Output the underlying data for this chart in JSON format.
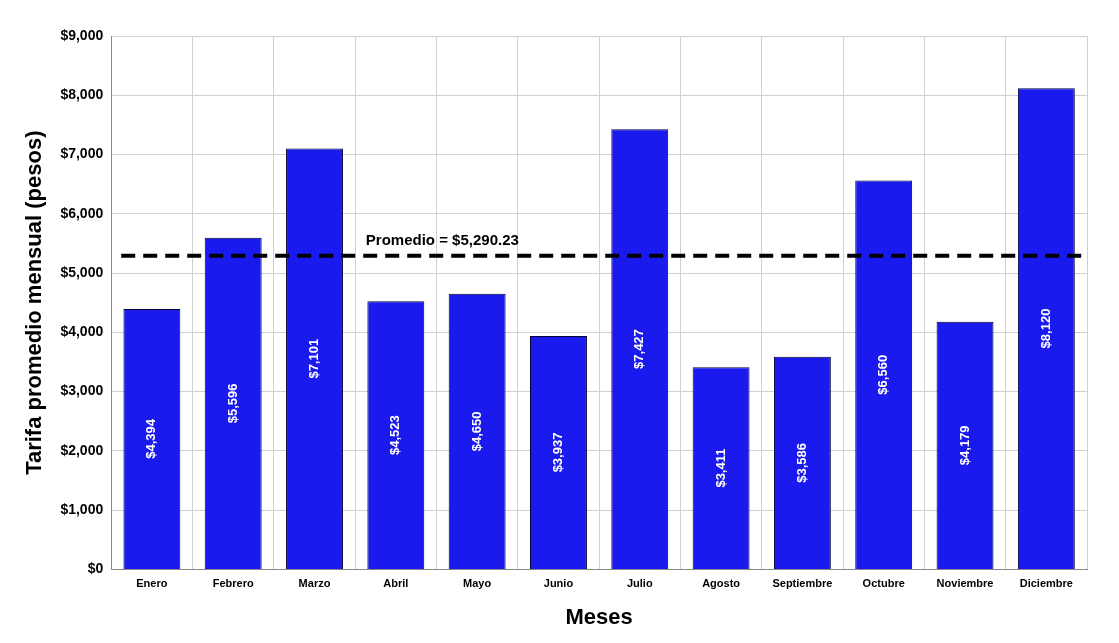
{
  "chart_data": {
    "type": "bar",
    "xlabel": "Meses",
    "ylabel": "Tarifa promedio mensual (pesos)",
    "categories": [
      "Enero",
      "Febrero",
      "Marzo",
      "Abril",
      "Mayo",
      "Junio",
      "Julio",
      "Agosto",
      "Septiembre",
      "Octubre",
      "Noviembre",
      "Diciembre"
    ],
    "values": [
      4394,
      5596,
      7101,
      4523,
      4650,
      3937,
      7427,
      3411,
      3586,
      6560,
      4179,
      8120
    ],
    "value_labels": [
      "$4,394",
      "$5,596",
      "$7,101",
      "$4,523",
      "$4,650",
      "$3,937",
      "$7,427",
      "$3,411",
      "$3,586",
      "$6,560",
      "$4,179",
      "$8,120"
    ],
    "color": "#1a1aee",
    "ylim": [
      0,
      9000
    ],
    "yticks": [
      {
        "value": 0,
        "label": "$0"
      },
      {
        "value": 1000,
        "label": "$1,000"
      },
      {
        "value": 2000,
        "label": "$2,000"
      },
      {
        "value": 3000,
        "label": "$3,000"
      },
      {
        "value": 4000,
        "label": "$4,000"
      },
      {
        "value": 5000,
        "label": "$5,000"
      },
      {
        "value": 6000,
        "label": "$6,000"
      },
      {
        "value": 7000,
        "label": "$7,000"
      },
      {
        "value": 8000,
        "label": "$8,000"
      },
      {
        "value": 9000,
        "label": "$9,000"
      }
    ],
    "ref_lines": [
      {
        "axis": "y",
        "value": 5290.23,
        "label": "Promedio = $5,290.23",
        "color": "#000000",
        "line_style": "dashed"
      }
    ],
    "grid": true,
    "legend": false
  }
}
